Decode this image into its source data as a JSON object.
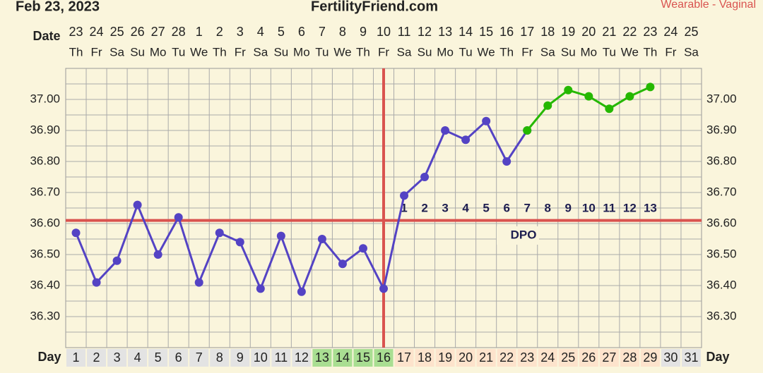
{
  "chart_data": {
    "type": "line",
    "title": "Feb 23, 2023",
    "site": "FertilityFriend.com",
    "subtitle": "Wearable - Vaginal",
    "date_label": "Date",
    "day_label": "Day",
    "dpo_title": "DPO",
    "dates": [
      23,
      24,
      25,
      26,
      27,
      28,
      1,
      2,
      3,
      4,
      5,
      6,
      7,
      8,
      9,
      10,
      11,
      12,
      13,
      14,
      15,
      16,
      17,
      18,
      19,
      20,
      21,
      22,
      23,
      24,
      25
    ],
    "weekdays": [
      "Th",
      "Fr",
      "Sa",
      "Su",
      "Mo",
      "Tu",
      "We",
      "Th",
      "Fr",
      "Sa",
      "Su",
      "Mo",
      "Tu",
      "We",
      "Th",
      "Fr",
      "Sa",
      "Su",
      "Mo",
      "Tu",
      "We",
      "Th",
      "Fr",
      "Sa",
      "Su",
      "Mo",
      "Tu",
      "We",
      "Th",
      "Fr",
      "Sa"
    ],
    "categories": [
      1,
      2,
      3,
      4,
      5,
      6,
      7,
      8,
      9,
      10,
      11,
      12,
      13,
      14,
      15,
      16,
      17,
      18,
      19,
      20,
      21,
      22,
      23,
      24,
      25,
      26,
      27,
      28,
      29,
      30,
      31
    ],
    "day_colors": [
      "#e3e3e3",
      "#e3e3e3",
      "#e3e3e3",
      "#e3e3e3",
      "#e3e3e3",
      "#e3e3e3",
      "#e3e3e3",
      "#e3e3e3",
      "#e3e3e3",
      "#e3e3e3",
      "#e3e3e3",
      "#e3e3e3",
      "#a9de92",
      "#a9de92",
      "#a9de92",
      "#a9de92",
      "#fde3cc",
      "#fde3cc",
      "#fde3cc",
      "#fde3cc",
      "#fde3cc",
      "#fde3cc",
      "#fde3cc",
      "#fde3cc",
      "#fde3cc",
      "#fde3cc",
      "#fde3cc",
      "#fde3cc",
      "#fde3cc",
      "#e3e3e3",
      "#e3e3e3"
    ],
    "dpo_labels": [
      null,
      null,
      null,
      null,
      null,
      null,
      null,
      null,
      null,
      null,
      null,
      null,
      null,
      null,
      null,
      null,
      1,
      2,
      3,
      4,
      5,
      6,
      7,
      8,
      9,
      10,
      11,
      12,
      13,
      null,
      null
    ],
    "series": [
      {
        "color": "#5443c4",
        "values": [
          36.57,
          36.41,
          36.48,
          36.66,
          36.5,
          36.62,
          36.41,
          36.57,
          36.54,
          36.39,
          36.56,
          36.38,
          36.55,
          36.47,
          36.52,
          36.39,
          36.69,
          36.75,
          36.9,
          36.87,
          36.93,
          36.8,
          36.9,
          null,
          null,
          null,
          null,
          null,
          null,
          null,
          null
        ]
      },
      {
        "color": "#25b800",
        "values": [
          null,
          null,
          null,
          null,
          null,
          null,
          null,
          null,
          null,
          null,
          null,
          null,
          null,
          null,
          null,
          null,
          null,
          null,
          null,
          null,
          null,
          null,
          36.9,
          36.98,
          37.03,
          37.01,
          36.97,
          37.01,
          37.04,
          null,
          null
        ]
      }
    ],
    "coverline": 36.61,
    "ovulation_day": 16,
    "marker_line_color": "#d9534f",
    "ylim": [
      36.2,
      37.1
    ],
    "yticks": [
      {
        "value": 36.3,
        "label": "36.30"
      },
      {
        "value": 36.4,
        "label": "36.40"
      },
      {
        "value": 36.5,
        "label": "36.50"
      },
      {
        "value": 36.6,
        "label": "36.60"
      },
      {
        "value": 36.7,
        "label": "36.70"
      },
      {
        "value": 36.8,
        "label": "36.80"
      },
      {
        "value": 36.9,
        "label": "36.90"
      },
      {
        "value": 37.0,
        "label": "37.00"
      }
    ],
    "y_minor_ticks": [
      36.25,
      36.35,
      36.45,
      36.55,
      36.65,
      36.75,
      36.85,
      36.95,
      37.05
    ],
    "grid": true
  }
}
